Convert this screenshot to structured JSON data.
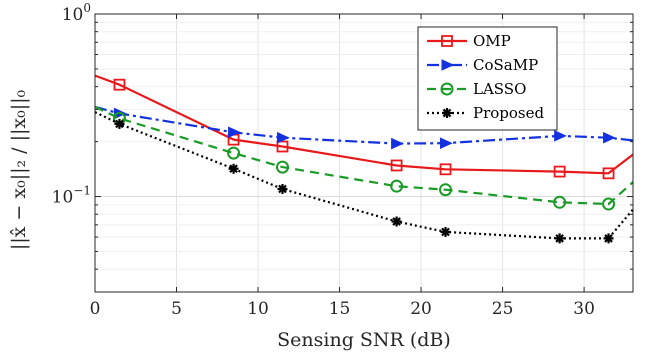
{
  "chart_data": {
    "type": "line",
    "xlabel": "Sensing SNR (dB)",
    "ylabel": "||x̂ − x₀||₂ / ||x₀||₀",
    "xlim": [
      0,
      33
    ],
    "ylim": [
      0.03,
      1.0
    ],
    "yscale": "log",
    "grid": true,
    "legend_position": "top-right",
    "x_ticks": [
      "0",
      "5",
      "10",
      "15",
      "20",
      "25",
      "30"
    ],
    "y_ticks": [
      {
        "value": 1.0,
        "base": "10",
        "exp": "0"
      },
      {
        "value": 0.1,
        "base": "10",
        "exp": "−1"
      }
    ],
    "series": [
      {
        "name": "OMP",
        "color": "#e8191b",
        "dash": "",
        "marker": "square",
        "x": [
          0,
          1.5,
          8.5,
          11.5,
          18.5,
          21.5,
          28.5,
          31.5,
          33
        ],
        "y": [
          0.46,
          0.41,
          0.205,
          0.188,
          0.148,
          0.141,
          0.137,
          0.134,
          0.17
        ],
        "marker_x": [
          1.5,
          8.5,
          11.5,
          18.5,
          21.5,
          28.5,
          31.5
        ]
      },
      {
        "name": "CoSaMP",
        "color": "#1431e0",
        "dash": "12 4 3 4",
        "marker": "triangle-right",
        "x": [
          0,
          1.5,
          8.5,
          11.5,
          18.5,
          21.5,
          28.5,
          31.5,
          33
        ],
        "y": [
          0.31,
          0.285,
          0.225,
          0.21,
          0.195,
          0.196,
          0.215,
          0.21,
          0.203
        ],
        "marker_x": [
          1.5,
          8.5,
          11.5,
          18.5,
          21.5,
          28.5,
          31.5
        ]
      },
      {
        "name": "LASSO",
        "color": "#1a9a26",
        "dash": "9 6",
        "marker": "circle",
        "x": [
          0,
          1.5,
          8.5,
          11.5,
          18.5,
          21.5,
          28.5,
          31.5,
          33
        ],
        "y": [
          0.31,
          0.268,
          0.173,
          0.145,
          0.114,
          0.109,
          0.093,
          0.091,
          0.12
        ],
        "marker_x": [
          1.5,
          8.5,
          11.5,
          18.5,
          21.5,
          28.5,
          31.5
        ]
      },
      {
        "name": "Proposed",
        "color": "#000000",
        "dash": "2 3",
        "marker": "asterisk",
        "x": [
          0,
          1.5,
          8.5,
          11.5,
          18.5,
          21.5,
          28.5,
          31.5,
          33
        ],
        "y": [
          0.29,
          0.25,
          0.142,
          0.11,
          0.073,
          0.064,
          0.059,
          0.059,
          0.085
        ],
        "marker_x": [
          1.5,
          8.5,
          11.5,
          18.5,
          21.5,
          28.5,
          31.5
        ]
      }
    ]
  }
}
